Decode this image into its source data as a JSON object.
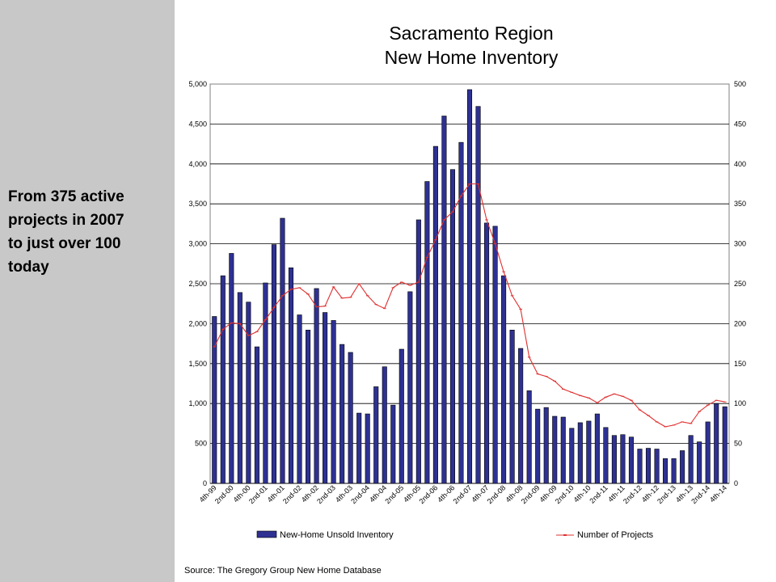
{
  "side_note": {
    "lines": [
      "From 375 active",
      "projects in 2007",
      "to just over 100",
      "today"
    ]
  },
  "source": "Source: The Gregory Group New Home Database",
  "colors": {
    "bar": "#2e3192",
    "line": "#e03030",
    "panel": "#c8c8c8"
  },
  "chart_data": {
    "type": "bar",
    "title": [
      "Sacramento Region",
      "New Home Inventory"
    ],
    "xlabel": "",
    "ylabel": "",
    "grid": true,
    "legend_position": "bottom",
    "y_left": {
      "range": [
        0,
        5000
      ],
      "ticks": [
        "0",
        "500",
        "1,000",
        "1,500",
        "2,000",
        "2,500",
        "3,000",
        "3,500",
        "4,000",
        "4,500",
        "5,000"
      ]
    },
    "y_right": {
      "range": [
        0,
        500
      ],
      "ticks": [
        "0",
        "50",
        "100",
        "150",
        "200",
        "250",
        "300",
        "350",
        "400",
        "450",
        "500"
      ]
    },
    "x_tick_labels": [
      "4th-99",
      "2nd-00",
      "4th-00",
      "2nd-01",
      "4th-01",
      "2nd-02",
      "4th-02",
      "2nd-03",
      "4th-03",
      "2nd-04",
      "4th-04",
      "2nd-05",
      "4th-05",
      "2nd-06",
      "4th-06",
      "2nd-07",
      "4th-07",
      "2nd-08",
      "4th-08",
      "2nd-09",
      "4th-09",
      "2nd-10",
      "4th-10",
      "2nd-11",
      "4th-11",
      "2nd-12",
      "4th-12",
      "2nd-13",
      "4th-13",
      "2nd-14",
      "4th-14"
    ],
    "series": [
      {
        "name": "New-Home Unsold Inventory",
        "type": "bar",
        "axis": "left",
        "values": [
          2090,
          2600,
          2880,
          2390,
          2270,
          1710,
          2510,
          2990,
          3320,
          2700,
          2110,
          1920,
          2440,
          2140,
          2040,
          1740,
          1640,
          880,
          870,
          1210,
          1460,
          980,
          1680,
          2400,
          3300,
          3780,
          4220,
          4600,
          3930,
          4270,
          4930,
          4720,
          3260,
          3220,
          2600,
          1920,
          1690,
          1160,
          930,
          950,
          840,
          830,
          690,
          760,
          780,
          870,
          700,
          600,
          610,
          580,
          430,
          440,
          430,
          310,
          310,
          410,
          600,
          520,
          770,
          1000,
          960
        ]
      },
      {
        "name": "Number of Projects",
        "type": "line",
        "axis": "right",
        "values": [
          171,
          193,
          201,
          200,
          185,
          190,
          205,
          220,
          235,
          243,
          245,
          237,
          221,
          222,
          246,
          232,
          233,
          250,
          235,
          224,
          219,
          245,
          252,
          248,
          252,
          283,
          305,
          330,
          340,
          360,
          375,
          375,
          330,
          300,
          265,
          235,
          218,
          158,
          137,
          134,
          128,
          118,
          114,
          110,
          107,
          101,
          108,
          112,
          109,
          104,
          92,
          85,
          77,
          71,
          73,
          77,
          75,
          90,
          98,
          104,
          102
        ]
      }
    ]
  }
}
